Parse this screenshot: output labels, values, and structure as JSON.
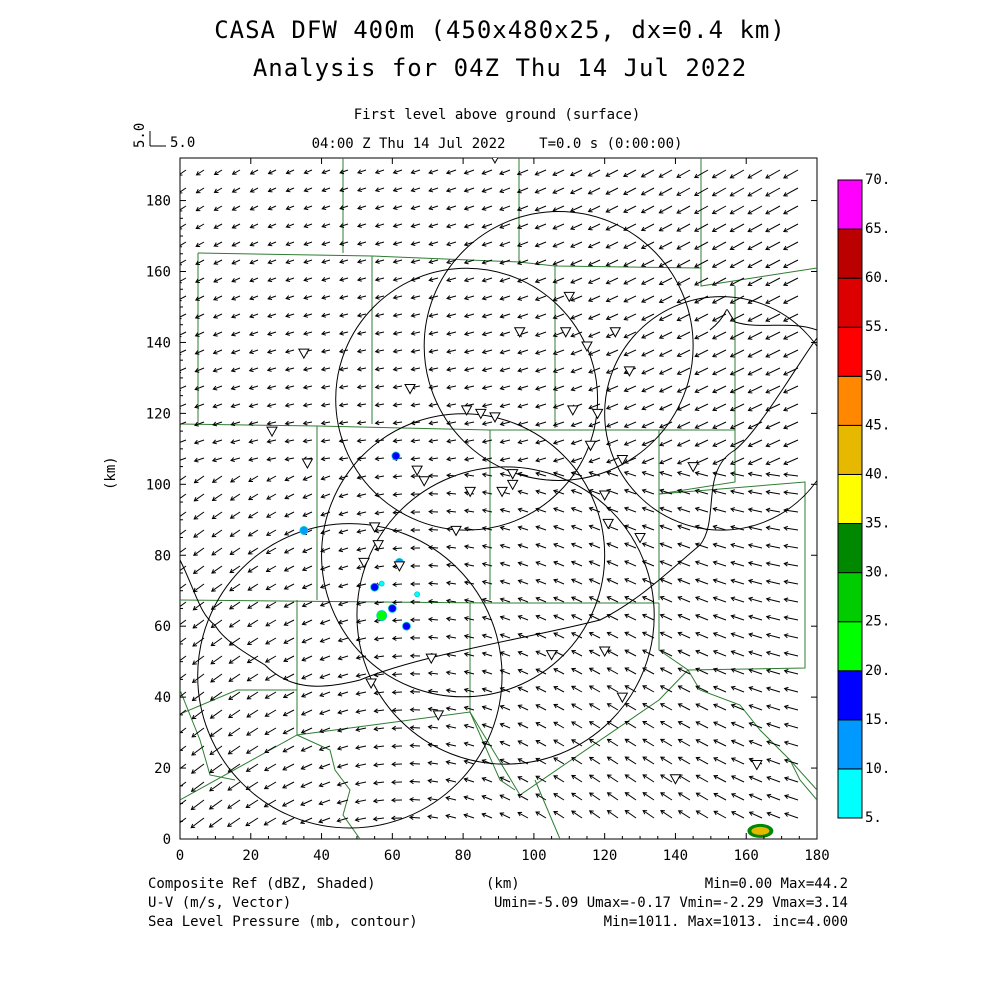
{
  "header": {
    "title": "CASA DFW 400m (450x480x25, dx=0.4 km)",
    "subtitle": "Analysis for 04Z Thu 14 Jul 2022",
    "level": "First level above ground (surface)",
    "time": "04:00 Z Thu 14 Jul 2022    T=0.0 s (0:00:00)",
    "ref_vector_value": "5.0",
    "ref_vector_label": "5.0"
  },
  "chart_data": {
    "type": "map",
    "xlabel": "(km)",
    "ylabel": "(km)",
    "xlim": [
      0,
      180
    ],
    "ylim": [
      0,
      192
    ],
    "x_ticks": [
      0,
      20,
      40,
      60,
      80,
      100,
      120,
      140,
      160,
      180
    ],
    "y_ticks": [
      0,
      20,
      40,
      60,
      80,
      100,
      120,
      140,
      160,
      180
    ],
    "x_tick_labels": [
      "0",
      "20",
      "40",
      "60",
      "80",
      "100",
      "120",
      "140",
      "160",
      "180"
    ],
    "y_tick_labels": [
      "0",
      "20",
      "40",
      "60",
      "80",
      "100",
      "120",
      "140",
      "160",
      "180"
    ],
    "radar_rings": [
      {
        "cx": 81,
        "cy": 124,
        "r": 37
      },
      {
        "cx": 107,
        "cy": 139,
        "r": 38
      },
      {
        "cx": 80,
        "cy": 80,
        "r": 40
      },
      {
        "cx": 92,
        "cy": 63,
        "r": 42
      },
      {
        "cx": 48,
        "cy": 46,
        "r": 43
      },
      {
        "cx": 153,
        "cy": 120,
        "r": 33
      }
    ],
    "stations": [
      [
        89,
        192
      ],
      [
        110,
        153
      ],
      [
        96,
        143
      ],
      [
        109,
        143
      ],
      [
        115,
        139
      ],
      [
        123,
        143
      ],
      [
        35,
        137
      ],
      [
        127,
        132
      ],
      [
        65,
        127
      ],
      [
        81,
        121
      ],
      [
        85,
        120
      ],
      [
        89,
        119
      ],
      [
        111,
        121
      ],
      [
        118,
        120
      ],
      [
        26,
        115
      ],
      [
        116,
        111
      ],
      [
        36,
        106
      ],
      [
        125,
        107
      ],
      [
        145,
        105
      ],
      [
        67,
        104
      ],
      [
        69,
        101
      ],
      [
        94,
        103
      ],
      [
        91,
        98
      ],
      [
        94,
        100
      ],
      [
        82,
        98
      ],
      [
        120,
        97
      ],
      [
        55,
        88
      ],
      [
        56,
        83
      ],
      [
        121,
        89
      ],
      [
        78,
        87
      ],
      [
        130,
        85
      ],
      [
        52,
        78
      ],
      [
        62,
        77
      ],
      [
        71,
        51
      ],
      [
        105,
        52
      ],
      [
        120,
        53
      ],
      [
        54,
        44
      ],
      [
        125,
        40
      ],
      [
        73,
        35
      ],
      [
        140,
        17
      ],
      [
        163,
        21
      ]
    ],
    "echoes": [
      {
        "x": 61,
        "y": 108,
        "dbz": 15
      },
      {
        "x": 35,
        "y": 87,
        "dbz": 10
      },
      {
        "x": 62,
        "y": 78,
        "dbz": 10
      },
      {
        "x": 57,
        "y": 72,
        "dbz": 5
      },
      {
        "x": 55,
        "y": 71,
        "dbz": 15
      },
      {
        "x": 60,
        "y": 65,
        "dbz": 15
      },
      {
        "x": 67,
        "y": 69,
        "dbz": 5
      },
      {
        "x": 57,
        "y": 63,
        "dbz": 20
      },
      {
        "x": 64,
        "y": 60,
        "dbz": 15
      },
      {
        "x": 164,
        "y": 2,
        "dbz": 44
      }
    ],
    "colorbar": {
      "levels": [
        "5.",
        "10.",
        "15.",
        "20.",
        "25.",
        "30.",
        "35.",
        "40.",
        "45.",
        "50.",
        "55.",
        "60.",
        "65.",
        "70."
      ],
      "colors": [
        "#00ffff",
        "#0099ff",
        "#0000ff",
        "#00ff00",
        "#00cc00",
        "#008800",
        "#ffff00",
        "#e6b800",
        "#ff8800",
        "#ff0000",
        "#dd0000",
        "#bb0000",
        "#ff00ff"
      ]
    },
    "wind": {
      "u_range": [
        -5.09,
        -0.17
      ],
      "v_range": [
        -2.29,
        3.14
      ]
    }
  },
  "footer": {
    "left1": "Composite Ref (dBZ, Shaded)",
    "left2": "U-V (m/s, Vector)",
    "left3": "Sea Level Pressure (mb, contour)",
    "xunit": "(km)",
    "right1": "Min=0.00 Max=44.2",
    "right2": "Umin=-5.09 Umax=-0.17 Vmin=-2.29 Vmax=3.14",
    "right3": "Min=1011. Max=1013. inc=4.000"
  }
}
